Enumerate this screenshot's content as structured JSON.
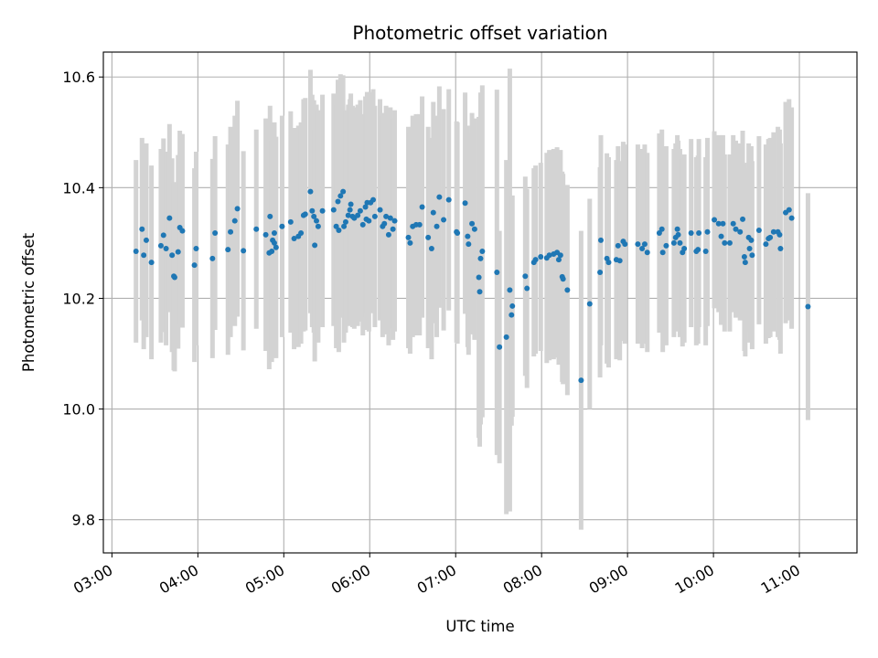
{
  "chart_data": {
    "type": "scatter",
    "title": "Photometric offset variation",
    "xlabel": "UTC time",
    "ylabel": "Photometric offset",
    "x_unit": "hours UTC",
    "xlim": [
      2.9,
      11.67
    ],
    "ylim": [
      9.74,
      10.645
    ],
    "xticks": [
      3,
      4,
      5,
      6,
      7,
      8,
      9,
      10,
      11
    ],
    "xtick_labels": [
      "03:00",
      "04:00",
      "05:00",
      "06:00",
      "07:00",
      "08:00",
      "09:00",
      "10:00",
      "11:00"
    ],
    "yticks": [
      9.8,
      10.0,
      10.2,
      10.4,
      10.6
    ],
    "ytick_labels": [
      "9.8",
      "10.0",
      "10.2",
      "10.4",
      "10.6"
    ],
    "grid": true,
    "colors": {
      "points": "#1f77b4",
      "errorbars": "#d3d3d3",
      "grid": "#b0b0b0"
    },
    "series": [
      {
        "points": [
          [
            3.28,
            10.285,
            0.165
          ],
          [
            3.35,
            10.325,
            0.165
          ],
          [
            3.37,
            10.278,
            0.17
          ],
          [
            3.4,
            10.305,
            0.175
          ],
          [
            3.46,
            10.265,
            0.175
          ],
          [
            3.57,
            10.295,
            0.175
          ],
          [
            3.6,
            10.314,
            0.175
          ],
          [
            3.63,
            10.29,
            0.175
          ],
          [
            3.67,
            10.345,
            0.17
          ],
          [
            3.7,
            10.278,
            0.175
          ],
          [
            3.72,
            10.24,
            0.17
          ],
          [
            3.73,
            10.238,
            0.17
          ],
          [
            3.77,
            10.284,
            0.175
          ],
          [
            3.79,
            10.328,
            0.175
          ],
          [
            3.82,
            10.322,
            0.175
          ],
          [
            3.96,
            10.26,
            0.175
          ],
          [
            3.98,
            10.29,
            0.175
          ],
          [
            4.17,
            10.272,
            0.18
          ],
          [
            4.2,
            10.318,
            0.175
          ],
          [
            4.35,
            10.288,
            0.19
          ],
          [
            4.38,
            10.32,
            0.19
          ],
          [
            4.43,
            10.34,
            0.19
          ],
          [
            4.46,
            10.362,
            0.195
          ],
          [
            4.53,
            10.286,
            0.18
          ],
          [
            4.68,
            10.325,
            0.18
          ],
          [
            4.79,
            10.315,
            0.21
          ],
          [
            4.83,
            10.282,
            0.21
          ],
          [
            4.84,
            10.348,
            0.2
          ],
          [
            4.86,
            10.285,
            0.2
          ],
          [
            4.87,
            10.305,
            0.2
          ],
          [
            4.89,
            10.318,
            0.2
          ],
          [
            4.89,
            10.3,
            0.2
          ],
          [
            4.91,
            10.292,
            0.2
          ],
          [
            4.98,
            10.33,
            0.2
          ],
          [
            5.08,
            10.338,
            0.2
          ],
          [
            5.12,
            10.308,
            0.2
          ],
          [
            5.17,
            10.312,
            0.2
          ],
          [
            5.2,
            10.318,
            0.2
          ],
          [
            5.23,
            10.35,
            0.21
          ],
          [
            5.25,
            10.352,
            0.21
          ],
          [
            5.31,
            10.393,
            0.22
          ],
          [
            5.33,
            10.358,
            0.21
          ],
          [
            5.35,
            10.348,
            0.21
          ],
          [
            5.36,
            10.296,
            0.21
          ],
          [
            5.38,
            10.34,
            0.21
          ],
          [
            5.4,
            10.33,
            0.21
          ],
          [
            5.45,
            10.358,
            0.21
          ],
          [
            5.58,
            10.36,
            0.21
          ],
          [
            5.61,
            10.33,
            0.22
          ],
          [
            5.63,
            10.375,
            0.22
          ],
          [
            5.64,
            10.323,
            0.22
          ],
          [
            5.66,
            10.385,
            0.22
          ],
          [
            5.69,
            10.393,
            0.21
          ],
          [
            5.7,
            10.33,
            0.21
          ],
          [
            5.72,
            10.338,
            0.2
          ],
          [
            5.75,
            10.35,
            0.2
          ],
          [
            5.77,
            10.36,
            0.2
          ],
          [
            5.78,
            10.37,
            0.2
          ],
          [
            5.8,
            10.348,
            0.2
          ],
          [
            5.82,
            10.345,
            0.2
          ],
          [
            5.86,
            10.35,
            0.2
          ],
          [
            5.89,
            10.358,
            0.2
          ],
          [
            5.92,
            10.333,
            0.2
          ],
          [
            5.95,
            10.365,
            0.2
          ],
          [
            5.96,
            10.343,
            0.2
          ],
          [
            5.97,
            10.373,
            0.2
          ],
          [
            5.99,
            10.34,
            0.2
          ],
          [
            6.01,
            10.373,
            0.2
          ],
          [
            6.04,
            10.378,
            0.2
          ],
          [
            6.06,
            10.348,
            0.2
          ],
          [
            6.12,
            10.36,
            0.2
          ],
          [
            6.15,
            10.33,
            0.2
          ],
          [
            6.17,
            10.335,
            0.2
          ],
          [
            6.19,
            10.348,
            0.2
          ],
          [
            6.22,
            10.315,
            0.2
          ],
          [
            6.24,
            10.345,
            0.2
          ],
          [
            6.27,
            10.325,
            0.2
          ],
          [
            6.29,
            10.34,
            0.2
          ],
          [
            6.45,
            10.31,
            0.2
          ],
          [
            6.47,
            10.3,
            0.2
          ],
          [
            6.5,
            10.33,
            0.2
          ],
          [
            6.54,
            10.333,
            0.2
          ],
          [
            6.58,
            10.333,
            0.2
          ],
          [
            6.61,
            10.365,
            0.2
          ],
          [
            6.68,
            10.31,
            0.2
          ],
          [
            6.72,
            10.29,
            0.2
          ],
          [
            6.74,
            10.355,
            0.2
          ],
          [
            6.78,
            10.33,
            0.2
          ],
          [
            6.81,
            10.383,
            0.2
          ],
          [
            6.86,
            10.342,
            0.2
          ],
          [
            6.92,
            10.378,
            0.2
          ],
          [
            7.01,
            10.32,
            0.2
          ],
          [
            7.02,
            10.318,
            0.2
          ],
          [
            7.11,
            10.372,
            0.2
          ],
          [
            7.14,
            10.312,
            0.2
          ],
          [
            7.15,
            10.298,
            0.2
          ],
          [
            7.19,
            10.335,
            0.2
          ],
          [
            7.22,
            10.325,
            0.2
          ],
          [
            7.27,
            10.238,
            0.29
          ],
          [
            7.28,
            10.212,
            0.28
          ],
          [
            7.29,
            10.272,
            0.3
          ],
          [
            7.31,
            10.285,
            0.3
          ],
          [
            7.48,
            10.247,
            0.33
          ],
          [
            7.51,
            10.112,
            0.21
          ],
          [
            7.59,
            10.13,
            0.32
          ],
          [
            7.63,
            10.215,
            0.4
          ],
          [
            7.65,
            10.17,
            0.2
          ],
          [
            7.66,
            10.186,
            0.2
          ],
          [
            7.81,
            10.24,
            0.18
          ],
          [
            7.83,
            10.218,
            0.18
          ],
          [
            7.91,
            10.265,
            0.17
          ],
          [
            7.93,
            10.27,
            0.17
          ],
          [
            7.99,
            10.275,
            0.17
          ],
          [
            8.06,
            10.273,
            0.19
          ],
          [
            8.09,
            10.278,
            0.19
          ],
          [
            8.14,
            10.28,
            0.19
          ],
          [
            8.18,
            10.283,
            0.19
          ],
          [
            8.2,
            10.27,
            0.19
          ],
          [
            8.22,
            10.278,
            0.19
          ],
          [
            8.24,
            10.239,
            0.19
          ],
          [
            8.25,
            10.235,
            0.19
          ],
          [
            8.3,
            10.215,
            0.19
          ],
          [
            8.46,
            10.052,
            0.27
          ],
          [
            8.56,
            10.19,
            0.19
          ],
          [
            8.68,
            10.247,
            0.19
          ],
          [
            8.69,
            10.305,
            0.19
          ],
          [
            8.76,
            10.272,
            0.19
          ],
          [
            8.78,
            10.265,
            0.19
          ],
          [
            8.87,
            10.27,
            0.18
          ],
          [
            8.89,
            10.295,
            0.18
          ],
          [
            8.91,
            10.268,
            0.18
          ],
          [
            8.95,
            10.303,
            0.18
          ],
          [
            8.97,
            10.298,
            0.18
          ],
          [
            9.12,
            10.298,
            0.18
          ],
          [
            9.17,
            10.29,
            0.18
          ],
          [
            9.2,
            10.298,
            0.18
          ],
          [
            9.23,
            10.283,
            0.18
          ],
          [
            9.37,
            10.318,
            0.18
          ],
          [
            9.4,
            10.325,
            0.18
          ],
          [
            9.41,
            10.283,
            0.18
          ],
          [
            9.45,
            10.295,
            0.18
          ],
          [
            9.54,
            10.3,
            0.17
          ],
          [
            9.56,
            10.31,
            0.17
          ],
          [
            9.58,
            10.325,
            0.17
          ],
          [
            9.59,
            10.315,
            0.17
          ],
          [
            9.61,
            10.3,
            0.17
          ],
          [
            9.64,
            10.283,
            0.17
          ],
          [
            9.66,
            10.29,
            0.17
          ],
          [
            9.74,
            10.318,
            0.17
          ],
          [
            9.8,
            10.285,
            0.17
          ],
          [
            9.82,
            10.288,
            0.17
          ],
          [
            9.83,
            10.318,
            0.17
          ],
          [
            9.91,
            10.285,
            0.17
          ],
          [
            9.93,
            10.32,
            0.17
          ],
          [
            10.01,
            10.342,
            0.16
          ],
          [
            10.06,
            10.335,
            0.16
          ],
          [
            10.09,
            10.312,
            0.16
          ],
          [
            10.11,
            10.335,
            0.16
          ],
          [
            10.13,
            10.3,
            0.16
          ],
          [
            10.19,
            10.3,
            0.16
          ],
          [
            10.23,
            10.335,
            0.16
          ],
          [
            10.26,
            10.325,
            0.16
          ],
          [
            10.31,
            10.32,
            0.16
          ],
          [
            10.34,
            10.343,
            0.16
          ],
          [
            10.36,
            10.275,
            0.17
          ],
          [
            10.37,
            10.265,
            0.17
          ],
          [
            10.41,
            10.31,
            0.17
          ],
          [
            10.42,
            10.29,
            0.17
          ],
          [
            10.44,
            10.305,
            0.17
          ],
          [
            10.45,
            10.278,
            0.17
          ],
          [
            10.53,
            10.323,
            0.17
          ],
          [
            10.61,
            10.298,
            0.18
          ],
          [
            10.64,
            10.308,
            0.18
          ],
          [
            10.66,
            10.31,
            0.18
          ],
          [
            10.7,
            10.32,
            0.18
          ],
          [
            10.75,
            10.32,
            0.19
          ],
          [
            10.77,
            10.315,
            0.19
          ],
          [
            10.78,
            10.29,
            0.19
          ],
          [
            10.84,
            10.355,
            0.2
          ],
          [
            10.88,
            10.36,
            0.2
          ],
          [
            10.91,
            10.345,
            0.2
          ],
          [
            11.1,
            10.185,
            0.205
          ]
        ]
      }
    ]
  }
}
